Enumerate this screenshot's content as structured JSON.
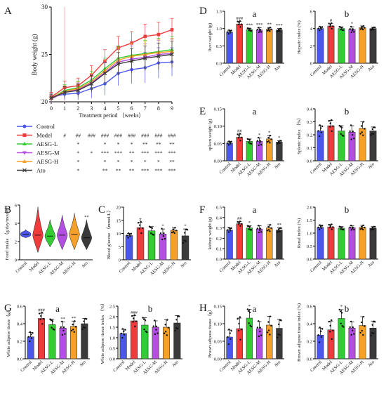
{
  "colors": {
    "Control": "#4a57e8",
    "Model": "#ee3b3b",
    "AESG-L": "#33cc33",
    "AESG-M": "#b24fe0",
    "AESG-H": "#f5a028",
    "Ato": "#3a3a3a"
  },
  "groups": [
    "Control",
    "Model",
    "AESG-L",
    "AESG-M",
    "AESG-H",
    "Ato"
  ],
  "panel_letters": {
    "A": "A",
    "B": "B",
    "C": "C",
    "D": "D",
    "E": "E",
    "F": "F",
    "G": "G",
    "H": "H"
  },
  "chart_data": [
    {
      "id": "A",
      "type": "line",
      "xlabel": "Treatment period （weeks）",
      "ylabel": "Body weight (g)",
      "xlim": [
        0,
        9
      ],
      "ylim": [
        20,
        30
      ],
      "xticks": [
        "0",
        "1",
        "2",
        "3",
        "4",
        "5",
        "6",
        "7",
        "8",
        "9"
      ],
      "yticks": [
        "20",
        "25",
        "30"
      ],
      "x": [
        0,
        1,
        2,
        3,
        4,
        5,
        6,
        7,
        8,
        9
      ],
      "series": [
        {
          "name": "Control",
          "values": [
            20.5,
            20.8,
            20.9,
            21.4,
            21.9,
            23.0,
            23.4,
            23.6,
            24.1,
            24.2
          ],
          "err": [
            0.4,
            0.6,
            0.7,
            1.0,
            1.2,
            1.3,
            1.5,
            1.6,
            1.6,
            1.5
          ]
        },
        {
          "name": "Model",
          "values": [
            20.5,
            21.5,
            21.7,
            22.8,
            24.3,
            25.7,
            26.2,
            26.9,
            27.1,
            27.6
          ],
          "err": [
            0.5,
            0.7,
            0.8,
            1.0,
            1.2,
            1.2,
            1.2,
            1.3,
            1.3,
            1.2
          ]
        },
        {
          "name": "AESG-L",
          "values": [
            20.4,
            21.2,
            21.5,
            22.3,
            23.5,
            24.6,
            24.9,
            25.1,
            25.3,
            25.5
          ],
          "err": [
            0.4,
            0.6,
            0.7,
            0.9,
            1.1,
            1.3,
            1.3,
            1.4,
            1.4,
            1.4
          ]
        },
        {
          "name": "AESG-M",
          "values": [
            20.3,
            21.0,
            21.3,
            22.0,
            23.1,
            24.2,
            24.5,
            24.7,
            25.0,
            25.1
          ],
          "err": [
            0.4,
            0.6,
            0.7,
            0.9,
            1.1,
            1.3,
            1.4,
            1.4,
            1.5,
            1.5
          ]
        },
        {
          "name": "AESG-H",
          "values": [
            20.4,
            21.1,
            21.4,
            22.1,
            23.3,
            24.4,
            24.8,
            25.0,
            25.2,
            25.3
          ],
          "err": [
            0.4,
            0.6,
            0.7,
            0.9,
            1.1,
            1.3,
            1.4,
            1.4,
            1.4,
            1.4
          ]
        },
        {
          "name": "Ato",
          "values": [
            20.4,
            21.0,
            21.2,
            21.9,
            23.0,
            24.0,
            24.3,
            24.6,
            24.8,
            25.0
          ],
          "err": [
            0.4,
            0.6,
            0.7,
            0.9,
            1.1,
            1.2,
            1.3,
            1.3,
            1.4,
            1.4
          ]
        }
      ],
      "significance": {
        "header": [
          "#",
          "##",
          "###",
          "###",
          "###",
          "###",
          "###",
          "###",
          "###"
        ],
        "AESG-L": [
          "",
          "*",
          "",
          "*",
          "*",
          "*",
          "**",
          "**",
          "**"
        ],
        "AESG-M": [
          "",
          "*",
          "*",
          "***",
          "***",
          "**",
          "***",
          "***",
          "***"
        ],
        "AESG-H": [
          "",
          "*",
          "",
          "*",
          "*",
          "*",
          "*",
          "*",
          "**"
        ],
        "Ato": [
          "",
          "*",
          "",
          "**",
          "**",
          "**",
          "***",
          "***",
          "***"
        ]
      }
    },
    {
      "id": "B",
      "type": "violin",
      "ylabel": "Food intake （g/day/mouse）",
      "ylim": [
        0,
        6
      ],
      "yticks": [
        "0",
        "2",
        "4",
        "6"
      ],
      "categories": [
        "Control",
        "Model",
        "AESG-L",
        "AESG-M",
        "AESG-H",
        "Ato"
      ],
      "median": [
        2.8,
        2.7,
        2.6,
        2.7,
        2.8,
        2.4
      ],
      "min": [
        2.4,
        0.8,
        1.4,
        1.1,
        1.1,
        1.1
      ],
      "max": [
        3.3,
        5.8,
        4.4,
        4.9,
        5.1,
        4.4
      ],
      "sig": [
        "",
        "",
        "",
        "",
        "",
        "**"
      ]
    },
    {
      "id": "C",
      "type": "bar",
      "ylabel": "Blood glucose （mmol/L）",
      "ylim": [
        0,
        20
      ],
      "yticks": [
        "0",
        "5",
        "10",
        "15",
        "20"
      ],
      "categories": [
        "Control",
        "Model",
        "AESG-L",
        "AESG-M",
        "AESG-H",
        "Ato"
      ],
      "values": [
        9.2,
        12.2,
        11.0,
        9.8,
        11.2,
        9.1
      ],
      "err": [
        0.8,
        2.0,
        1.6,
        1.9,
        1.0,
        2.6
      ],
      "sig": [
        "",
        "#",
        "",
        "*",
        "",
        "*"
      ]
    },
    {
      "id": "Da",
      "type": "bar",
      "ylabel": "liver weight (g)",
      "ylim": [
        0,
        1.5
      ],
      "yticks": [
        "0.0",
        "0.5",
        "1.0",
        "1.5"
      ],
      "tag": "a",
      "categories": [
        "Control",
        "Model",
        "AESG-L",
        "AESG-M",
        "AESG-H",
        "Ato"
      ],
      "values": [
        0.9,
        1.13,
        0.97,
        0.96,
        0.98,
        0.96
      ],
      "err": [
        0.05,
        0.08,
        0.04,
        0.06,
        0.05,
        0.04
      ],
      "sig": [
        "",
        "###",
        "***",
        "***",
        "**",
        "***"
      ]
    },
    {
      "id": "Db",
      "type": "bar",
      "ylabel": "Hepatic index (%)",
      "ylim": [
        0,
        6
      ],
      "yticks": [
        "0",
        "2",
        "4",
        "6"
      ],
      "tag": "b",
      "categories": [
        "Control",
        "Model",
        "AESG-L",
        "AESG-M",
        "AESG-H",
        "Ato"
      ],
      "values": [
        4.0,
        4.3,
        4.0,
        3.9,
        4.1,
        4.0
      ],
      "err": [
        0.2,
        0.3,
        0.2,
        0.3,
        0.2,
        0.15
      ],
      "sig": [
        "",
        "#",
        "",
        "*",
        "",
        ""
      ]
    },
    {
      "id": "Ea",
      "type": "bar",
      "ylabel": "spleen weight (g)",
      "ylim": [
        0,
        0.15
      ],
      "yticks": [
        "0.00",
        "0.05",
        "0.10",
        "0.15"
      ],
      "tag": "a",
      "categories": [
        "Control",
        "Model",
        "AESG-L",
        "AESG-M",
        "AESG-H",
        "Ato"
      ],
      "values": [
        0.051,
        0.068,
        0.056,
        0.056,
        0.063,
        0.054
      ],
      "err": [
        0.005,
        0.009,
        0.007,
        0.01,
        0.01,
        0.004
      ],
      "sig": [
        "",
        "##",
        "",
        "*",
        "*",
        "*"
      ]
    },
    {
      "id": "Eb",
      "type": "bar",
      "ylabel": "Splenic index （%）",
      "ylim": [
        0,
        0.4
      ],
      "yticks": [
        "0.0",
        "0.1",
        "0.2",
        "0.3",
        "0.4"
      ],
      "tag": "b",
      "categories": [
        "Control",
        "Model",
        "AESG-L",
        "AESG-M",
        "AESG-H",
        "Ato"
      ],
      "values": [
        0.23,
        0.27,
        0.23,
        0.22,
        0.25,
        0.23
      ],
      "err": [
        0.04,
        0.04,
        0.04,
        0.05,
        0.05,
        0.03
      ],
      "sig": [
        "",
        "",
        "",
        "",
        "",
        ""
      ]
    },
    {
      "id": "Fa",
      "type": "bar",
      "ylabel": "kidney weight (g)",
      "ylim": [
        0,
        0.5
      ],
      "yticks": [
        "0.0",
        "0.1",
        "0.2",
        "0.3",
        "0.4",
        "0.5"
      ],
      "tag": "a",
      "categories": [
        "Control",
        "Model",
        "AESG-L",
        "AESG-M",
        "AESG-H",
        "Ato"
      ],
      "values": [
        0.28,
        0.34,
        0.3,
        0.29,
        0.3,
        0.28
      ],
      "err": [
        0.02,
        0.02,
        0.02,
        0.03,
        0.03,
        0.02
      ],
      "sig": [
        "",
        "##",
        "*",
        "",
        "",
        "**"
      ]
    },
    {
      "id": "Fb",
      "type": "bar",
      "ylabel": "Renal index (%)",
      "ylim": [
        0,
        2.0
      ],
      "yticks": [
        "0.0",
        "0.5",
        "1.0",
        "1.5",
        "2.0"
      ],
      "tag": "b",
      "categories": [
        "Control",
        "Model",
        "AESG-L",
        "AESG-M",
        "AESG-H",
        "Ato"
      ],
      "values": [
        1.22,
        1.24,
        1.19,
        1.21,
        1.22,
        1.19
      ],
      "err": [
        0.08,
        0.09,
        0.06,
        0.08,
        0.08,
        0.06
      ],
      "sig": [
        "",
        "",
        "",
        "",
        "",
        ""
      ]
    },
    {
      "id": "Ga",
      "type": "bar",
      "ylabel": "White adipose tissue（g）",
      "ylim": [
        0,
        0.6
      ],
      "yticks": [
        "0.0",
        "0.2",
        "0.4",
        "0.6"
      ],
      "tag": "a",
      "categories": [
        "Control",
        "Model",
        "AESG-L",
        "AESG-M",
        "AESG-H",
        "Ato"
      ],
      "values": [
        0.25,
        0.46,
        0.39,
        0.35,
        0.37,
        0.4
      ],
      "err": [
        0.05,
        0.06,
        0.06,
        0.07,
        0.06,
        0.06
      ],
      "sig": [
        "",
        "###",
        "",
        "**",
        "**",
        ""
      ]
    },
    {
      "id": "Gb",
      "type": "bar",
      "ylabel": "White adipose tissue index （%）",
      "ylim": [
        0,
        2.5
      ],
      "yticks": [
        "0.0",
        "0.5",
        "1.0",
        "1.5",
        "2.0",
        "2.5"
      ],
      "tag": "b",
      "categories": [
        "Control",
        "Model",
        "AESG-L",
        "AESG-M",
        "AESG-H",
        "Ato"
      ],
      "values": [
        1.2,
        1.8,
        1.6,
        1.5,
        1.5,
        1.7
      ],
      "err": [
        0.2,
        0.25,
        0.35,
        0.3,
        0.35,
        0.35
      ],
      "sig": [
        "",
        "###",
        "",
        "",
        "",
        ""
      ]
    },
    {
      "id": "Ha",
      "type": "bar",
      "ylabel": "Brown adipose tissue（g）",
      "ylim": [
        0,
        0.15
      ],
      "yticks": [
        "0.00",
        "0.05",
        "0.10",
        "0.15"
      ],
      "tag": "a",
      "categories": [
        "Control",
        "Model",
        "AESG-L",
        "AESG-M",
        "AESG-H",
        "Ato"
      ],
      "values": [
        0.062,
        0.086,
        0.116,
        0.086,
        0.096,
        0.087
      ],
      "err": [
        0.02,
        0.03,
        0.025,
        0.02,
        0.025,
        0.025
      ],
      "sig": [
        "",
        "",
        "*",
        "",
        "",
        ""
      ]
    },
    {
      "id": "Hb",
      "type": "bar",
      "ylabel": "Brown adipose tissue index (%)",
      "ylim": [
        0,
        0.6
      ],
      "yticks": [
        "0.0",
        "0.2",
        "0.4",
        "0.6"
      ],
      "tag": "b",
      "categories": [
        "Control",
        "Model",
        "AESG-L",
        "AESG-M",
        "AESG-H",
        "Ato"
      ],
      "values": [
        0.27,
        0.33,
        0.46,
        0.35,
        0.38,
        0.35
      ],
      "err": [
        0.08,
        0.1,
        0.1,
        0.07,
        0.1,
        0.08
      ],
      "sig": [
        "",
        "",
        "*",
        "",
        "",
        ""
      ]
    }
  ]
}
